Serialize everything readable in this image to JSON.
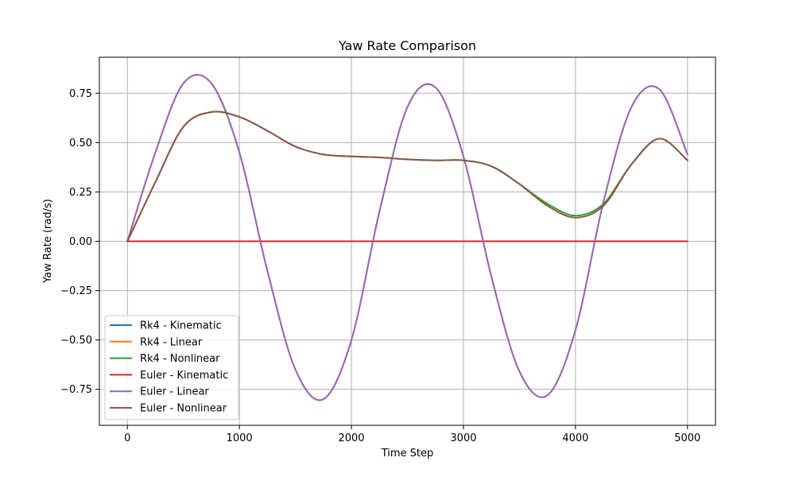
{
  "chart_data": {
    "type": "line",
    "title": "Yaw Rate Comparison",
    "xlabel": "Time Step",
    "ylabel": "Yaw Rate (rad/s)",
    "xlim": [
      -250,
      5250
    ],
    "ylim": [
      -0.9325,
      0.9325
    ],
    "xticks": [
      0,
      1000,
      2000,
      3000,
      4000,
      5000
    ],
    "xtick_labels": [
      "0",
      "1000",
      "2000",
      "3000",
      "4000",
      "5000"
    ],
    "yticks": [
      0.75,
      0.5,
      0.25,
      0.0,
      -0.25,
      -0.5,
      -0.75
    ],
    "ytick_labels": [
      "0.75",
      "0.50",
      "0.25",
      "0.00",
      "−0.25",
      "−0.50",
      "−0.75"
    ],
    "grid": true,
    "legend_position": "lower-left",
    "series": [
      {
        "name": "Rk4 - Kinematic",
        "color": "#1f77b4",
        "x": [
          0,
          5000
        ],
        "y": [
          0,
          0
        ]
      },
      {
        "name": "Rk4 - Linear",
        "color": "#ff7f0e",
        "x": [
          0,
          250,
          500,
          750,
          1000,
          1250,
          1500,
          1750,
          2000,
          2250,
          2500,
          2750,
          3000,
          3250,
          3500,
          3750,
          4000,
          4250,
          4500,
          4750,
          5000
        ],
        "y": [
          0.0,
          0.45,
          0.8,
          0.8,
          0.45,
          -0.15,
          -0.65,
          -0.8,
          -0.5,
          0.15,
          0.68,
          0.78,
          0.43,
          -0.18,
          -0.66,
          -0.78,
          -0.45,
          0.2,
          0.68,
          0.77,
          0.44
        ]
      },
      {
        "name": "Rk4 - Nonlinear",
        "color": "#2ca02c",
        "x": [
          0,
          250,
          500,
          750,
          1000,
          1250,
          1500,
          1750,
          2000,
          2250,
          2500,
          2750,
          3000,
          3250,
          3500,
          3750,
          4000,
          4250,
          4500,
          4750,
          5000
        ],
        "y": [
          0.0,
          0.3,
          0.58,
          0.655,
          0.63,
          0.56,
          0.48,
          0.44,
          0.43,
          0.425,
          0.415,
          0.41,
          0.41,
          0.38,
          0.29,
          0.19,
          0.13,
          0.19,
          0.39,
          0.52,
          0.41
        ]
      },
      {
        "name": "Euler - Kinematic",
        "color": "#d62728",
        "x": [
          0,
          5000
        ],
        "y": [
          0,
          0
        ]
      },
      {
        "name": "Euler - Linear",
        "color": "#9467bd",
        "x": [
          0,
          250,
          500,
          750,
          1000,
          1250,
          1500,
          1750,
          2000,
          2250,
          2500,
          2750,
          3000,
          3250,
          3500,
          3750,
          4000,
          4250,
          4500,
          4750,
          5000
        ],
        "y": [
          0.0,
          0.45,
          0.8,
          0.8,
          0.45,
          -0.15,
          -0.65,
          -0.8,
          -0.5,
          0.15,
          0.68,
          0.78,
          0.43,
          -0.18,
          -0.66,
          -0.78,
          -0.45,
          0.2,
          0.68,
          0.77,
          0.44
        ]
      },
      {
        "name": "Euler - Nonlinear",
        "color": "#8c564b",
        "x": [
          0,
          250,
          500,
          750,
          1000,
          1250,
          1500,
          1750,
          2000,
          2250,
          2500,
          2750,
          3000,
          3250,
          3500,
          3750,
          4000,
          4250,
          4500,
          4750,
          5000
        ],
        "y": [
          0.0,
          0.3,
          0.58,
          0.655,
          0.63,
          0.56,
          0.48,
          0.44,
          0.43,
          0.425,
          0.415,
          0.41,
          0.41,
          0.38,
          0.29,
          0.18,
          0.12,
          0.18,
          0.39,
          0.52,
          0.41
        ]
      }
    ]
  }
}
